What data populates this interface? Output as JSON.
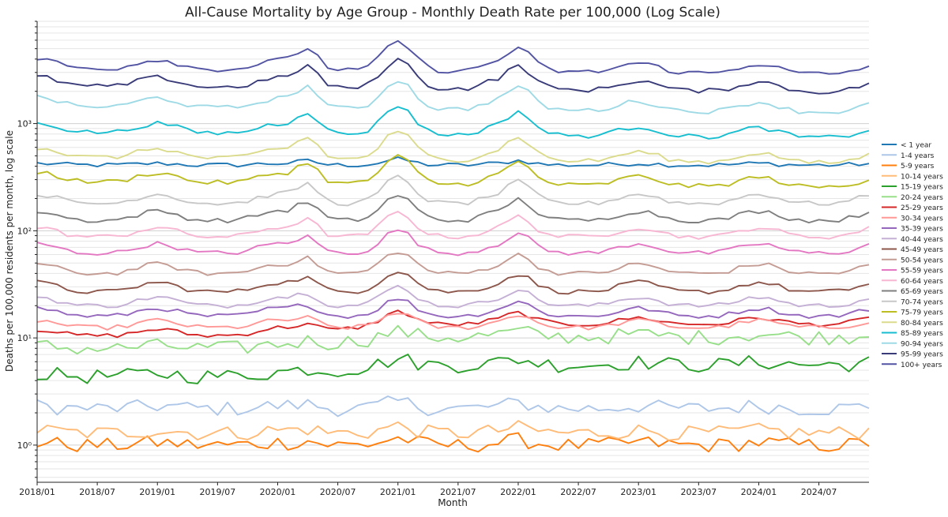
{
  "chart_data": {
    "type": "line",
    "title": "All-Cause Mortality by Age Group - Monthly Death Rate per 100,000 (Log Scale)",
    "xlabel": "Month",
    "ylabel": "Deaths per 100,000 residents per month, log scale",
    "y_scale": "log",
    "ylim": [
      0.45,
      9000
    ],
    "grid": "horizontal minor + major",
    "legend_position": "right",
    "x_start": "2018/01",
    "x_end": "2024/12",
    "x_ticks": [
      "2018/01",
      "2018/07",
      "2019/01",
      "2019/07",
      "2020/01",
      "2020/07",
      "2021/01",
      "2021/07",
      "2022/01",
      "2022/07",
      "2023/01",
      "2023/07",
      "2024/01",
      "2024/07"
    ],
    "y_ticks": [
      {
        "value": 1,
        "label": "10⁰"
      },
      {
        "value": 10,
        "label": "10¹"
      },
      {
        "value": 100,
        "label": "10²"
      },
      {
        "value": 1000,
        "label": "10³"
      }
    ],
    "series": [
      {
        "name": "< 1 year",
        "color": "#1f77b4",
        "base": 410
      },
      {
        "name": "1-4 years",
        "color": "#aec7e8",
        "base": 2.2
      },
      {
        "name": "5-9 years",
        "color": "#ff7f0e",
        "base": 1.0
      },
      {
        "name": "10-14 years",
        "color": "#ffbb78",
        "base": 1.3
      },
      {
        "name": "15-19 years",
        "color": "#2ca02c",
        "base": 4.4
      },
      {
        "name": "20-24 years",
        "color": "#98df8a",
        "base": 8.0
      },
      {
        "name": "25-29 years",
        "color": "#d62728",
        "base": 10.5
      },
      {
        "name": "30-34 years",
        "color": "#ff9896",
        "base": 12.5
      },
      {
        "name": "35-39 years",
        "color": "#9467bd",
        "base": 16.0
      },
      {
        "name": "40-44 years",
        "color": "#c5b0d5",
        "base": 20.0
      },
      {
        "name": "45-49 years",
        "color": "#8c564b",
        "base": 27.0
      },
      {
        "name": "50-54 years",
        "color": "#c49c94",
        "base": 40.0
      },
      {
        "name": "55-59 years",
        "color": "#e377c2",
        "base": 62.0
      },
      {
        "name": "60-64 years",
        "color": "#f7b6d2",
        "base": 88.0
      },
      {
        "name": "65-69 years",
        "color": "#7f7f7f",
        "base": 125.0
      },
      {
        "name": "70-74 years",
        "color": "#c7c7c7",
        "base": 180.0
      },
      {
        "name": "75-79 years",
        "color": "#bcbd22",
        "base": 290.0
      },
      {
        "name": "80-84 years",
        "color": "#dbdb8d",
        "base": 490.0
      },
      {
        "name": "85-89 years",
        "color": "#17becf",
        "base": 840.0
      },
      {
        "name": "90-94 years",
        "color": "#9edae5",
        "base": 1450.0
      },
      {
        "name": "95-99 years",
        "color": "#393b79",
        "base": 2250.0
      },
      {
        "name": "100+ years",
        "color": "#5254a3",
        "base": 3300.0
      }
    ],
    "series_note": "Each series shows 84 monthly values (2018/01–2024/12) around its base level with winter peaks and COVID waves (2020/04, 2021/01, 2022/01)."
  }
}
